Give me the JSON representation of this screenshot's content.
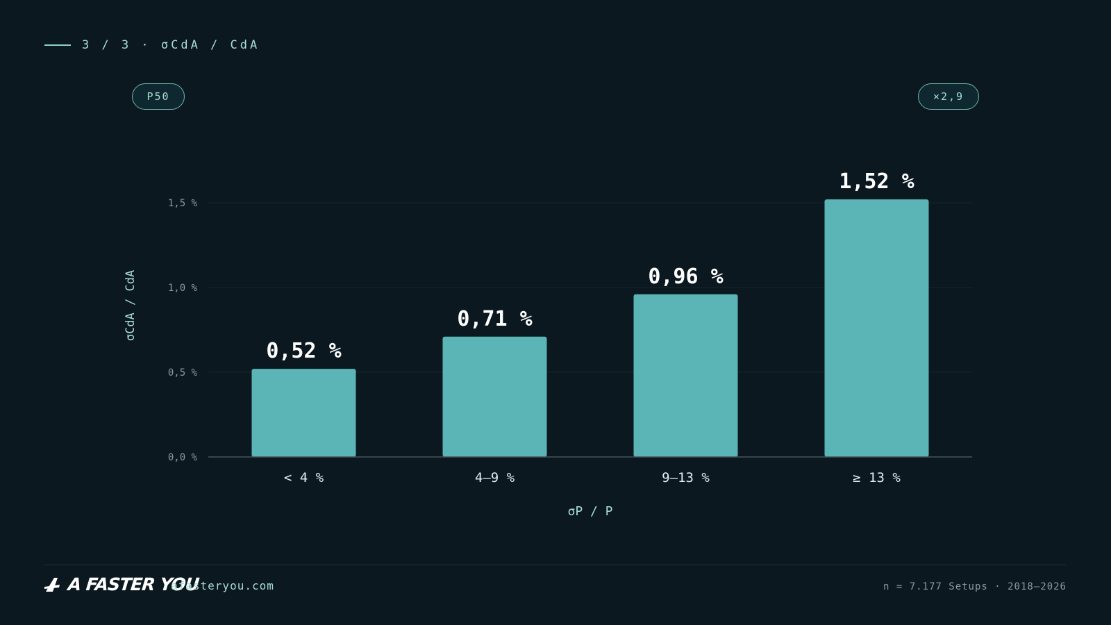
{
  "header": {
    "slide_label": "3 / 3 · σCdA / CdA"
  },
  "badges": {
    "left": "P50",
    "right": "×2,9"
  },
  "colors": {
    "background": "#0b1820",
    "bar": "#5bb5b6",
    "accent": "#a9ddd3",
    "grid": "#16262d",
    "axis": "#44545b"
  },
  "chart_data": {
    "type": "bar",
    "categories": [
      "< 4 %",
      "4–9 %",
      "9–13 %",
      "≥ 13 %"
    ],
    "values": [
      0.52,
      0.71,
      0.96,
      1.52
    ],
    "value_labels": [
      "0,52 %",
      "0,71 %",
      "0,96 %",
      "1,52 %"
    ],
    "xlabel": "σP / P",
    "ylabel": "σCdA / CdA",
    "ylim": [
      0,
      1.5
    ],
    "yticks": [
      0,
      0.5,
      1.0,
      1.5
    ],
    "ytick_labels": [
      "0,0 %",
      "0,5 %",
      "1,0 %",
      "1,5 %"
    ],
    "grid": true
  },
  "footer": {
    "brand": "A FASTER YOU",
    "site": "afasteryou.com",
    "meta": "n = 7.177 Setups · 2018–2026"
  }
}
